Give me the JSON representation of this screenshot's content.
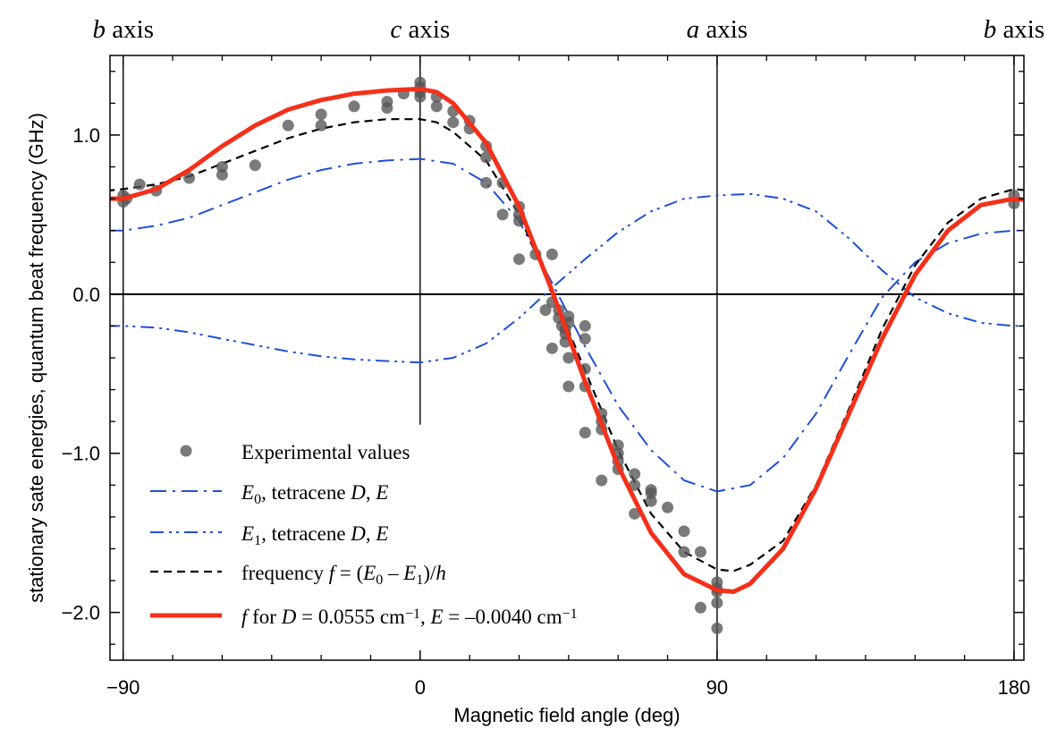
{
  "chart_data": {
    "type": "line",
    "xlabel": "Magnetic field angle  (deg)",
    "ylabel": "stationary sate energies, quantum beat frequency (GHz)",
    "xlim": [
      -94,
      183
    ],
    "ylim": [
      -2.3,
      1.5
    ],
    "xticks": [
      -90,
      0,
      90,
      180
    ],
    "xtick_labels": [
      "−90",
      "0",
      "90",
      "180"
    ],
    "yticks": [
      -2.0,
      -1.0,
      0.0,
      1.0
    ],
    "ytick_labels": [
      "−2.0",
      "−1.0",
      "0.0",
      "1.0"
    ],
    "top_labels": [
      {
        "x": -90,
        "italic": "b",
        "text": " axis"
      },
      {
        "x": 0,
        "italic": "c",
        "text": " axis"
      },
      {
        "x": 90,
        "italic": "a",
        "text": " axis"
      },
      {
        "x": 180,
        "italic": "b",
        "text": " axis"
      }
    ],
    "vertical_lines": [
      {
        "x": -90,
        "y_from": 1.5,
        "y_to": -2.3
      },
      {
        "x": 0,
        "y_from": 1.5,
        "y_to": -0.82
      },
      {
        "x": 90,
        "y_from": 1.5,
        "y_to": -2.3
      },
      {
        "x": 180,
        "y_from": 1.5,
        "y_to": -2.3
      }
    ],
    "legend": {
      "placement": "bottom-left",
      "entries": [
        {
          "series": "experimental",
          "parts": [
            {
              "t": "Experimental values"
            }
          ]
        },
        {
          "series": "E0",
          "parts": [
            {
              "t": "E",
              "i": 1
            },
            {
              "t": "0",
              "sub": 1
            },
            {
              "t": ", tetracene "
            },
            {
              "t": "D",
              "i": 1
            },
            {
              "t": ", "
            },
            {
              "t": "E",
              "i": 1
            }
          ]
        },
        {
          "series": "E1",
          "parts": [
            {
              "t": "E",
              "i": 1
            },
            {
              "t": "1",
              "sub": 1
            },
            {
              "t": ", tetracene "
            },
            {
              "t": "D",
              "i": 1
            },
            {
              "t": ", "
            },
            {
              "t": "E",
              "i": 1
            }
          ]
        },
        {
          "series": "frequency",
          "parts": [
            {
              "t": "frequency "
            },
            {
              "t": "f",
              "i": 1
            },
            {
              "t": " = ("
            },
            {
              "t": "E",
              "i": 1
            },
            {
              "t": "0",
              "sub": 1
            },
            {
              "t": " – "
            },
            {
              "t": "E",
              "i": 1
            },
            {
              "t": "1",
              "sub": 1
            },
            {
              "t": ")/"
            },
            {
              "t": "h",
              "i": 1
            }
          ]
        },
        {
          "series": "fit",
          "parts": [
            {
              "t": "f",
              "i": 1
            },
            {
              "t": " for "
            },
            {
              "t": "D",
              "i": 1
            },
            {
              "t": " = 0.0555 cm"
            },
            {
              "t": "−1",
              "sup": 1
            },
            {
              "t": ", "
            },
            {
              "t": "E",
              "i": 1
            },
            {
              "t": " = –0.0040 cm"
            },
            {
              "t": "−1",
              "sup": 1
            }
          ]
        }
      ]
    },
    "series": [
      {
        "id": "experimental",
        "style": "scatter",
        "color": "#555555",
        "points": [
          [
            -90,
            0.62
          ],
          [
            -90,
            0.58
          ],
          [
            -89,
            0.6
          ],
          [
            -85,
            0.69
          ],
          [
            -80,
            0.65
          ],
          [
            -70,
            0.73
          ],
          [
            -60,
            0.8
          ],
          [
            -60,
            0.75
          ],
          [
            -50,
            0.81
          ],
          [
            -40,
            1.06
          ],
          [
            -30,
            1.13
          ],
          [
            -30,
            1.06
          ],
          [
            -20,
            1.18
          ],
          [
            -10,
            1.21
          ],
          [
            -10,
            1.17
          ],
          [
            -5,
            1.26
          ],
          [
            0,
            1.33
          ],
          [
            0,
            1.3
          ],
          [
            0,
            1.27
          ],
          [
            0,
            1.24
          ],
          [
            5,
            1.24
          ],
          [
            5,
            1.18
          ],
          [
            10,
            1.15
          ],
          [
            10,
            1.08
          ],
          [
            15,
            1.09
          ],
          [
            15,
            1.04
          ],
          [
            20,
            0.93
          ],
          [
            20,
            0.86
          ],
          [
            20,
            0.7
          ],
          [
            25,
            0.7
          ],
          [
            25,
            0.5
          ],
          [
            30,
            0.55
          ],
          [
            30,
            0.5
          ],
          [
            30,
            0.46
          ],
          [
            30,
            0.22
          ],
          [
            35,
            0.25
          ],
          [
            40,
            0.25
          ],
          [
            40,
            -0.34
          ],
          [
            38,
            -0.1
          ],
          [
            40,
            -0.05
          ],
          [
            42,
            -0.1
          ],
          [
            42,
            -0.15
          ],
          [
            43,
            -0.2
          ],
          [
            44,
            -0.22
          ],
          [
            44,
            -0.25
          ],
          [
            44,
            -0.3
          ],
          [
            45,
            -0.14
          ],
          [
            45,
            -0.18
          ],
          [
            45,
            -0.58
          ],
          [
            45,
            -0.4
          ],
          [
            50,
            -0.2
          ],
          [
            50,
            -0.28
          ],
          [
            50,
            -0.47
          ],
          [
            50,
            -0.58
          ],
          [
            50,
            -0.87
          ],
          [
            55,
            -0.75
          ],
          [
            55,
            -0.8
          ],
          [
            55,
            -0.85
          ],
          [
            55,
            -1.17
          ],
          [
            60,
            -0.95
          ],
          [
            60,
            -1.0
          ],
          [
            60,
            -1.05
          ],
          [
            60,
            -1.1
          ],
          [
            65,
            -1.13
          ],
          [
            65,
            -1.2
          ],
          [
            65,
            -1.38
          ],
          [
            70,
            -1.23
          ],
          [
            70,
            -1.25
          ],
          [
            70,
            -1.3
          ],
          [
            75,
            -1.34
          ],
          [
            80,
            -1.49
          ],
          [
            80,
            -1.62
          ],
          [
            85,
            -1.62
          ],
          [
            85,
            -1.97
          ],
          [
            90,
            -1.81
          ],
          [
            90,
            -1.85
          ],
          [
            90,
            -1.87
          ],
          [
            90,
            -1.94
          ],
          [
            90,
            -2.1
          ],
          [
            180,
            0.62
          ],
          [
            180,
            0.57
          ],
          [
            185,
            0.69
          ]
        ]
      },
      {
        "id": "E0",
        "style": "dashdot",
        "color": "#1f4fd6",
        "points": [
          [
            -95,
            0.4
          ],
          [
            -90,
            0.4
          ],
          [
            -80,
            0.43
          ],
          [
            -70,
            0.48
          ],
          [
            -60,
            0.56
          ],
          [
            -50,
            0.64
          ],
          [
            -40,
            0.72
          ],
          [
            -30,
            0.78
          ],
          [
            -20,
            0.82
          ],
          [
            -10,
            0.84
          ],
          [
            0,
            0.85
          ],
          [
            10,
            0.82
          ],
          [
            20,
            0.7
          ],
          [
            30,
            0.46
          ],
          [
            40,
            0.07
          ],
          [
            50,
            -0.33
          ],
          [
            60,
            -0.7
          ],
          [
            70,
            -0.98
          ],
          [
            80,
            -1.17
          ],
          [
            90,
            -1.24
          ],
          [
            100,
            -1.2
          ],
          [
            110,
            -1.03
          ],
          [
            120,
            -0.75
          ],
          [
            130,
            -0.38
          ],
          [
            140,
            -0.02
          ],
          [
            150,
            0.2
          ],
          [
            160,
            0.32
          ],
          [
            170,
            0.38
          ],
          [
            180,
            0.4
          ],
          [
            185,
            0.4
          ]
        ]
      },
      {
        "id": "E1",
        "style": "dashdotdot",
        "color": "#1f4fd6",
        "points": [
          [
            -95,
            -0.2
          ],
          [
            -90,
            -0.2
          ],
          [
            -80,
            -0.21
          ],
          [
            -70,
            -0.24
          ],
          [
            -60,
            -0.28
          ],
          [
            -50,
            -0.32
          ],
          [
            -40,
            -0.36
          ],
          [
            -30,
            -0.39
          ],
          [
            -20,
            -0.41
          ],
          [
            -10,
            -0.42
          ],
          [
            0,
            -0.43
          ],
          [
            10,
            -0.4
          ],
          [
            20,
            -0.31
          ],
          [
            30,
            -0.15
          ],
          [
            40,
            0.04
          ],
          [
            50,
            0.22
          ],
          [
            60,
            0.39
          ],
          [
            70,
            0.52
          ],
          [
            80,
            0.6
          ],
          [
            90,
            0.62
          ],
          [
            100,
            0.63
          ],
          [
            110,
            0.6
          ],
          [
            120,
            0.52
          ],
          [
            130,
            0.35
          ],
          [
            140,
            0.15
          ],
          [
            150,
            -0.02
          ],
          [
            160,
            -0.12
          ],
          [
            170,
            -0.18
          ],
          [
            180,
            -0.2
          ],
          [
            185,
            -0.2
          ]
        ]
      },
      {
        "id": "frequency",
        "style": "dashed",
        "color": "#000000",
        "points": [
          [
            -95,
            0.65
          ],
          [
            -90,
            0.66
          ],
          [
            -80,
            0.69
          ],
          [
            -70,
            0.74
          ],
          [
            -60,
            0.82
          ],
          [
            -50,
            0.9
          ],
          [
            -40,
            0.98
          ],
          [
            -30,
            1.04
          ],
          [
            -20,
            1.08
          ],
          [
            -10,
            1.1
          ],
          [
            0,
            1.1
          ],
          [
            5,
            1.08
          ],
          [
            10,
            1.02
          ],
          [
            20,
            0.84
          ],
          [
            30,
            0.5
          ],
          [
            40,
            0.02
          ],
          [
            50,
            -0.48
          ],
          [
            60,
            -0.98
          ],
          [
            70,
            -1.38
          ],
          [
            80,
            -1.62
          ],
          [
            90,
            -1.73
          ],
          [
            95,
            -1.74
          ],
          [
            100,
            -1.7
          ],
          [
            110,
            -1.55
          ],
          [
            120,
            -1.2
          ],
          [
            130,
            -0.72
          ],
          [
            140,
            -0.22
          ],
          [
            150,
            0.18
          ],
          [
            160,
            0.45
          ],
          [
            170,
            0.6
          ],
          [
            180,
            0.66
          ],
          [
            185,
            0.65
          ]
        ]
      },
      {
        "id": "fit",
        "style": "solid",
        "color": "#f4301a",
        "points": [
          [
            -95,
            0.6
          ],
          [
            -90,
            0.6
          ],
          [
            -80,
            0.66
          ],
          [
            -70,
            0.78
          ],
          [
            -60,
            0.93
          ],
          [
            -50,
            1.06
          ],
          [
            -40,
            1.16
          ],
          [
            -30,
            1.22
          ],
          [
            -20,
            1.26
          ],
          [
            -10,
            1.28
          ],
          [
            0,
            1.29
          ],
          [
            5,
            1.27
          ],
          [
            10,
            1.2
          ],
          [
            20,
            0.95
          ],
          [
            30,
            0.55
          ],
          [
            40,
            0.02
          ],
          [
            50,
            -0.55
          ],
          [
            60,
            -1.08
          ],
          [
            70,
            -1.5
          ],
          [
            80,
            -1.76
          ],
          [
            90,
            -1.86
          ],
          [
            95,
            -1.87
          ],
          [
            100,
            -1.82
          ],
          [
            110,
            -1.6
          ],
          [
            120,
            -1.22
          ],
          [
            130,
            -0.75
          ],
          [
            140,
            -0.28
          ],
          [
            150,
            0.12
          ],
          [
            160,
            0.4
          ],
          [
            170,
            0.56
          ],
          [
            180,
            0.6
          ],
          [
            185,
            0.59
          ]
        ]
      }
    ]
  }
}
